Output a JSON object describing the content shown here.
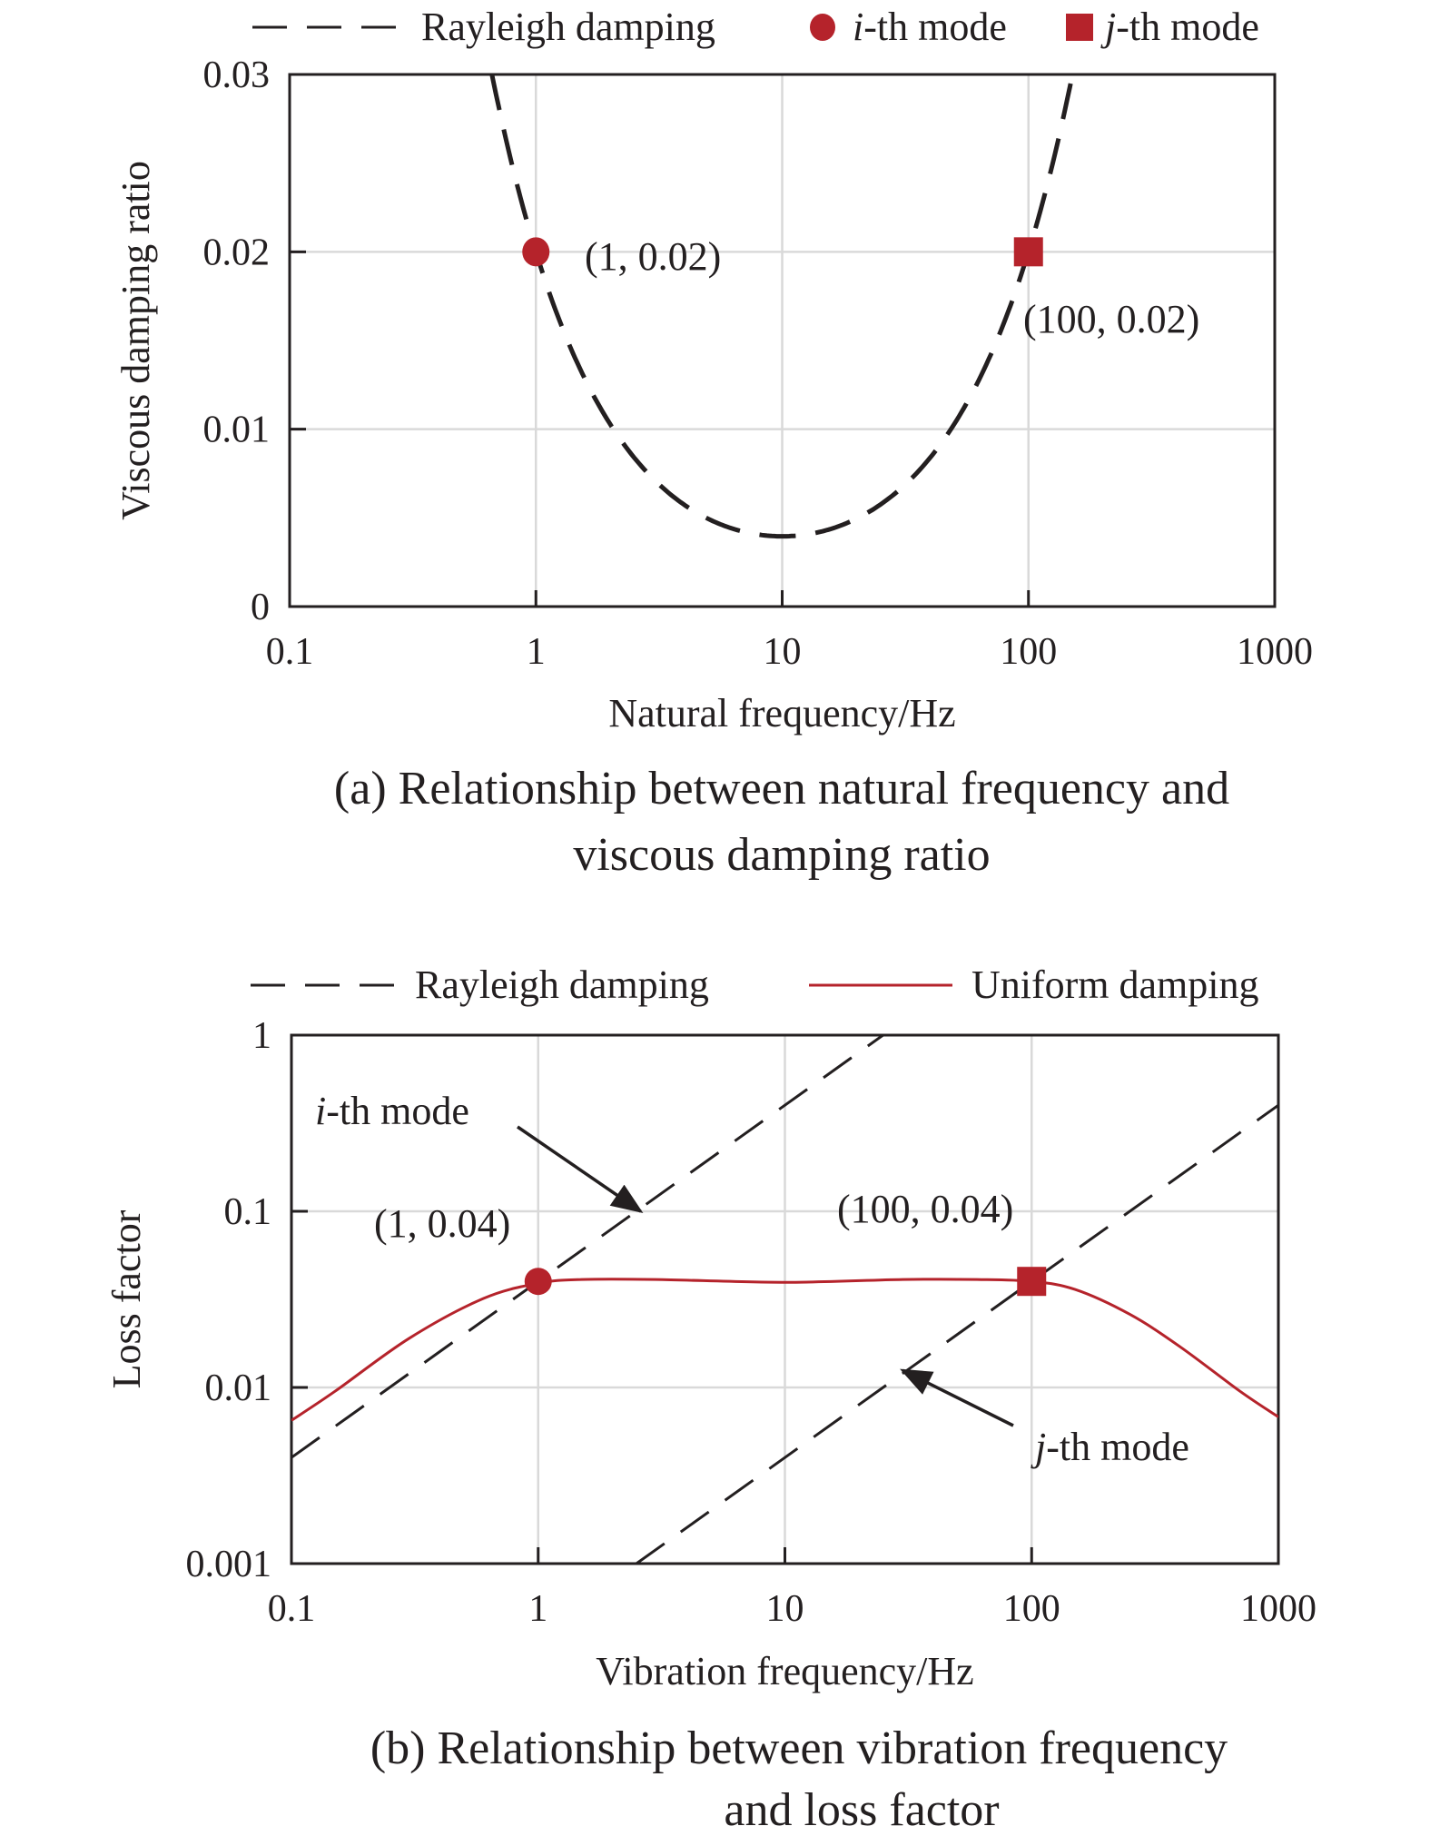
{
  "colors": {
    "rayleigh": "#231f20",
    "uniform": "#b5232b",
    "marker": "#b5232b",
    "grid": "#d9d9d9",
    "axis": "#231f20"
  },
  "chart_data": [
    {
      "type": "line",
      "caption_lines": [
        "(a) Relationship between natural frequency and",
        "viscous damping ratio"
      ],
      "xlabel": "Natural frequency/Hz",
      "ylabel": "Viscous damping ratio",
      "xscale": "log",
      "xlim": [
        0.1,
        1000
      ],
      "yscale": "linear",
      "ylim": [
        0,
        0.03
      ],
      "xticks": [
        "0.1",
        "1",
        "10",
        "100",
        "1000"
      ],
      "yticks": [
        "0",
        "0.01",
        "0.02",
        "0.03"
      ],
      "grid": true,
      "legend_position": "top",
      "legend": [
        {
          "label": "Rayleigh damping",
          "style": "dashed-line"
        },
        {
          "label_italic": "i",
          "label": "-th mode",
          "style": "circle"
        },
        {
          "label_italic": "j",
          "label": "-th mode",
          "style": "square"
        }
      ],
      "series": [
        {
          "name": "Rayleigh damping",
          "style": "dashed",
          "formula_coefficients": {
            "a_over_f": 0.0198,
            "b_times_f": 0.000198
          },
          "x": [
            0.66,
            0.8,
            1,
            1.5,
            2,
            3,
            5,
            7,
            10,
            15,
            20,
            30,
            50,
            70,
            100,
            130,
            150
          ],
          "y": [
            0.0301,
            0.0249,
            0.02,
            0.0135,
            0.0103,
            0.0072,
            0.005,
            0.0042,
            0.004,
            0.0043,
            0.0049,
            0.0066,
            0.0103,
            0.0141,
            0.02,
            0.0259,
            0.0298
          ]
        }
      ],
      "points": [
        {
          "label": "i-th mode",
          "x": 1,
          "y": 0.02,
          "marker": "circle",
          "annotation": "(1, 0.02)"
        },
        {
          "label": "j-th mode",
          "x": 100,
          "y": 0.02,
          "marker": "square",
          "annotation": "(100, 0.02)"
        }
      ]
    },
    {
      "type": "line",
      "caption_lines": [
        "(b) Relationship between vibration frequency",
        "and loss factor"
      ],
      "xlabel": "Vibration frequency/Hz",
      "ylabel": "Loss factor",
      "xscale": "log",
      "xlim": [
        0.1,
        1000
      ],
      "yscale": "log",
      "ylim": [
        0.001,
        1
      ],
      "xticks": [
        "0.1",
        "1",
        "10",
        "100",
        "1000"
      ],
      "yticks": [
        "0.001",
        "0.01",
        "0.1",
        "1"
      ],
      "grid": true,
      "legend_position": "top",
      "legend": [
        {
          "label": "Rayleigh damping",
          "style": "dashed-line"
        },
        {
          "label": "Uniform damping",
          "style": "solid-line"
        }
      ],
      "series": [
        {
          "name": "Rayleigh damping",
          "style": "dashed",
          "x": [
            0.1,
            25
          ],
          "y": [
            0.004,
            1
          ]
        },
        {
          "name": "Rayleigh damping",
          "style": "dashed",
          "x": [
            2.5,
            1000
          ],
          "y": [
            0.001,
            0.4
          ]
        },
        {
          "name": "Uniform damping",
          "style": "solid",
          "x": [
            0.1,
            0.15,
            0.3,
            0.6,
            1,
            1.5,
            3,
            10,
            30,
            60,
            100,
            150,
            250,
            400,
            700,
            1000
          ],
          "y": [
            0.0065,
            0.0095,
            0.019,
            0.032,
            0.039,
            0.041,
            0.041,
            0.0395,
            0.041,
            0.041,
            0.04,
            0.036,
            0.026,
            0.017,
            0.0095,
            0.0068
          ]
        }
      ],
      "points": [
        {
          "x": 1,
          "y": 0.04,
          "marker": "circle",
          "annotation": "(1, 0.04)"
        },
        {
          "x": 100,
          "y": 0.04,
          "marker": "square",
          "annotation": "(100, 0.04)"
        }
      ],
      "annotations": [
        {
          "italic": "i",
          "text": "-th mode",
          "arrow_to": [
            2.6,
            0.1
          ]
        },
        {
          "italic": "j",
          "text": "-th mode",
          "arrow_to": [
            30,
            0.0125
          ]
        }
      ]
    }
  ]
}
